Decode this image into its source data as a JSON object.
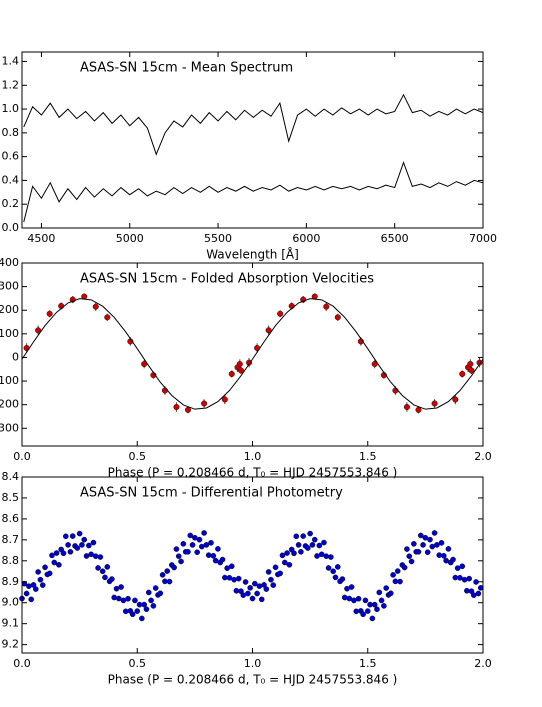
{
  "chart_data": [
    {
      "type": "line",
      "title": "ASAS-SN 15cm - Mean Spectrum",
      "x_label": "Wavelength [Å]",
      "xlim": [
        4390,
        7000
      ],
      "xticks": [
        4500,
        5000,
        5500,
        6000,
        6500,
        7000
      ],
      "ylim": [
        0,
        1.48
      ],
      "yticks": [
        {
          "value": 0,
          "label": "0.0"
        },
        0.2,
        0.4,
        0.6,
        0.8,
        {
          "value": 1,
          "label": "1.0"
        },
        1.2,
        1.4
      ],
      "series": [
        {
          "color": "#000000",
          "x": [
            4400,
            4450,
            4500,
            4550,
            4600,
            4650,
            4700,
            4750,
            4800,
            4850,
            4900,
            4950,
            5000,
            5050,
            5100,
            5150,
            5200,
            5250,
            5300,
            5350,
            5400,
            5450,
            5500,
            5550,
            5600,
            5650,
            5700,
            5750,
            5800,
            5850,
            5900,
            5950,
            6000,
            6050,
            6100,
            6150,
            6200,
            6250,
            6300,
            6350,
            6400,
            6450,
            6500,
            6550,
            6600,
            6650,
            6700,
            6750,
            6800,
            6850,
            6900,
            6950,
            7000
          ],
          "values": [
            0.85,
            1.02,
            0.95,
            1.05,
            0.93,
            1.0,
            0.92,
            0.98,
            0.9,
            0.97,
            0.88,
            0.95,
            0.86,
            0.93,
            0.84,
            0.62,
            0.8,
            0.9,
            0.85,
            0.95,
            0.88,
            0.97,
            0.9,
            0.98,
            0.91,
            0.99,
            0.93,
            0.99,
            0.94,
            1.05,
            0.73,
            0.95,
            1.0,
            0.94,
            1.0,
            0.95,
            1.01,
            0.96,
            1.0,
            0.95,
            1.0,
            0.96,
            0.98,
            1.12,
            0.97,
            0.99,
            0.94,
            0.98,
            0.95,
            1.0,
            0.96,
            1.0,
            0.97
          ]
        },
        {
          "color": "#000000",
          "x": [
            4400,
            4450,
            4500,
            4550,
            4600,
            4650,
            4700,
            4750,
            4800,
            4850,
            4900,
            4950,
            5000,
            5050,
            5100,
            5150,
            5200,
            5250,
            5300,
            5350,
            5400,
            5450,
            5500,
            5550,
            5600,
            5650,
            5700,
            5750,
            5800,
            5850,
            5900,
            5950,
            6000,
            6050,
            6100,
            6150,
            6200,
            6250,
            6300,
            6350,
            6400,
            6450,
            6500,
            6550,
            6600,
            6650,
            6700,
            6750,
            6800,
            6850,
            6900,
            6950,
            7000
          ],
          "values": [
            0.05,
            0.35,
            0.25,
            0.38,
            0.22,
            0.33,
            0.24,
            0.34,
            0.26,
            0.33,
            0.27,
            0.34,
            0.28,
            0.33,
            0.27,
            0.31,
            0.28,
            0.34,
            0.29,
            0.34,
            0.3,
            0.35,
            0.3,
            0.34,
            0.31,
            0.35,
            0.31,
            0.34,
            0.32,
            0.36,
            0.31,
            0.34,
            0.32,
            0.35,
            0.32,
            0.35,
            0.33,
            0.35,
            0.32,
            0.35,
            0.33,
            0.36,
            0.34,
            0.55,
            0.35,
            0.37,
            0.34,
            0.38,
            0.35,
            0.39,
            0.36,
            0.4,
            0.38
          ]
        }
      ]
    },
    {
      "type": "scatter",
      "title": "ASAS-SN 15cm - Folded Absorption Velocities",
      "x_label": "Phase (P =  0.208466 d,  T₀ = HJD 2457553.846 )",
      "xlim": [
        0,
        2
      ],
      "xticks": [
        {
          "value": 0,
          "label": "0.0"
        },
        0.5,
        {
          "value": 1,
          "label": "1.0"
        },
        1.5,
        {
          "value": 2,
          "label": "2.0"
        }
      ],
      "ylim": [
        -375,
        400
      ],
      "yticks": [
        -300,
        -200,
        -100,
        0,
        100,
        200,
        300,
        400
      ],
      "series": [
        {
          "type": "scatter",
          "color": "#cc0000",
          "x": [
            0.02,
            0.07,
            0.12,
            0.17,
            0.22,
            0.27,
            0.32,
            0.37,
            0.47,
            0.53,
            0.57,
            0.62,
            0.67,
            0.72,
            0.79,
            0.88,
            0.91,
            0.935,
            0.945,
            0.95,
            0.985,
            1.02,
            1.07,
            1.12,
            1.17,
            1.22,
            1.27,
            1.32,
            1.37,
            1.47,
            1.53,
            1.57,
            1.62,
            1.67,
            1.72,
            1.79,
            1.88,
            1.91,
            1.935,
            1.945,
            1.95,
            1.985
          ],
          "values": [
            40,
            115,
            185,
            218,
            245,
            258,
            215,
            170,
            68,
            -28,
            -75,
            -140,
            -210,
            -222,
            -195,
            -178,
            -70,
            -42,
            -28,
            -55,
            -22,
            40,
            115,
            185,
            218,
            245,
            258,
            215,
            170,
            68,
            -28,
            -75,
            -140,
            -210,
            -222,
            -195,
            -178,
            -70,
            -42,
            -28,
            -55,
            -22
          ],
          "errors": [
            20,
            20,
            15,
            15,
            15,
            12,
            18,
            15,
            18,
            18,
            15,
            18,
            20,
            15,
            18,
            20,
            15,
            20,
            20,
            15,
            20,
            20,
            20,
            15,
            15,
            15,
            12,
            18,
            15,
            18,
            18,
            15,
            18,
            20,
            15,
            18,
            20,
            15,
            20,
            20,
            15,
            20
          ]
        },
        {
          "type": "line",
          "color": "#000000",
          "x": [
            0,
            0.05,
            0.1,
            0.15,
            0.2,
            0.25,
            0.3,
            0.35,
            0.4,
            0.45,
            0.5,
            0.55,
            0.6,
            0.65,
            0.7,
            0.75,
            0.8,
            0.85,
            0.9,
            0.95,
            1,
            1.05,
            1.1,
            1.15,
            1.2,
            1.25,
            1.3,
            1.35,
            1.4,
            1.45,
            1.5,
            1.55,
            1.6,
            1.65,
            1.7,
            1.75,
            1.8,
            1.85,
            1.9,
            1.95,
            2
          ],
          "values": [
            -7,
            66,
            135,
            191,
            231,
            249,
            244,
            217,
            170,
            108,
            37,
            -36,
            -105,
            -161,
            -201,
            -219,
            -214,
            -187,
            -140,
            -78,
            -7,
            66,
            135,
            191,
            231,
            249,
            244,
            217,
            170,
            108,
            37,
            -36,
            -105,
            -161,
            -201,
            -219,
            -214,
            -187,
            -140,
            -78,
            -7
          ]
        }
      ]
    },
    {
      "type": "scatter",
      "title": "ASAS-SN 15cm - Differential Photometry",
      "x_label": "Phase (P =  0.208466 d,  T₀ = HJD 2457553.846 )",
      "xlim": [
        0,
        2
      ],
      "xticks": [
        {
          "value": 0,
          "label": "0.0"
        },
        0.5,
        {
          "value": 1,
          "label": "1.0"
        },
        1.5,
        {
          "value": 2,
          "label": "2.0"
        }
      ],
      "ylim": [
        9.24,
        8.4
      ],
      "yticks": [
        8.4,
        8.5,
        8.6,
        8.7,
        8.8,
        8.9,
        {
          "value": 9,
          "label": "9.0"
        },
        9.1,
        9.2
      ],
      "series": [
        {
          "type": "scatter",
          "color": "#0000cc",
          "x": [
            0,
            0.01,
            0.02,
            0.03,
            0.04,
            0.05,
            0.06,
            0.07,
            0.08,
            0.09,
            0.1,
            0.11,
            0.12,
            0.13,
            0.14,
            0.15,
            0.16,
            0.17,
            0.18,
            0.19,
            0.2,
            0.21,
            0.22,
            0.23,
            0.24,
            0.25,
            0.26,
            0.27,
            0.28,
            0.29,
            0.3,
            0.31,
            0.32,
            0.33,
            0.34,
            0.35,
            0.36,
            0.37,
            0.38,
            0.39,
            0.4,
            0.41,
            0.42,
            0.43,
            0.44,
            0.45,
            0.46,
            0.47,
            0.48,
            0.49,
            0.5,
            0.51,
            0.52,
            0.53,
            0.54,
            0.55,
            0.56,
            0.57,
            0.58,
            0.59,
            0.6,
            0.61,
            0.62,
            0.63,
            0.64,
            0.65,
            0.66,
            0.67,
            0.68,
            0.69,
            0.7,
            0.71,
            0.72,
            0.73,
            0.74,
            0.75,
            0.76,
            0.77,
            0.78,
            0.79,
            0.8,
            0.81,
            0.82,
            0.83,
            0.84,
            0.85,
            0.86,
            0.87,
            0.88,
            0.89,
            0.9,
            0.91,
            0.92,
            0.93,
            0.94,
            0.95,
            0.96,
            0.97,
            0.98,
            0.99,
            1,
            1.01,
            1.02,
            1.03,
            1.04,
            1.05,
            1.06,
            1.07,
            1.08,
            1.09,
            1.1,
            1.11,
            1.12,
            1.13,
            1.14,
            1.15,
            1.16,
            1.17,
            1.18,
            1.19,
            1.2,
            1.21,
            1.22,
            1.23,
            1.24,
            1.25,
            1.26,
            1.27,
            1.28,
            1.29,
            1.3,
            1.31,
            1.32,
            1.33,
            1.34,
            1.35,
            1.36,
            1.37,
            1.38,
            1.39,
            1.4,
            1.41,
            1.42,
            1.43,
            1.44,
            1.45,
            1.46,
            1.47,
            1.48,
            1.49,
            1.5,
            1.51,
            1.52,
            1.53,
            1.54,
            1.55,
            1.56,
            1.57,
            1.58,
            1.59,
            1.6,
            1.61,
            1.62,
            1.63,
            1.64,
            1.65,
            1.66,
            1.67,
            1.68,
            1.69,
            1.7,
            1.71,
            1.72,
            1.73,
            1.74,
            1.75,
            1.76,
            1.77,
            1.78,
            1.79,
            1.8,
            1.81,
            1.82,
            1.83,
            1.84,
            1.85,
            1.86,
            1.87,
            1.88,
            1.89,
            1.9,
            1.91,
            1.92,
            1.93,
            1.94,
            1.95,
            1.96,
            1.97,
            1.98,
            1.99
          ],
          "values": [
            8.98,
            8.909,
            8.956,
            8.921,
            8.984,
            8.915,
            8.935,
            8.853,
            8.89,
            8.916,
            8.831,
            8.865,
            8.86,
            8.774,
            8.808,
            8.763,
            8.819,
            8.746,
            8.764,
            8.683,
            8.724,
            8.757,
            8.682,
            8.729,
            8.739,
            8.67,
            8.724,
            8.699,
            8.777,
            8.727,
            8.769,
            8.713,
            8.778,
            8.834,
            8.782,
            8.85,
            8.879,
            8.829,
            8.898,
            8.887,
            8.975,
            8.933,
            8.98,
            8.925,
            8.989,
            9.041,
            8.981,
            9.039,
            9.055,
            8.989,
            9.04,
            9.009,
            9.075,
            9.009,
            9.031,
            8.951,
            8.989,
            9.015,
            8.93,
            8.963,
            8.955,
            8.867,
            8.898,
            8.849,
            8.899,
            8.82,
            8.832,
            8.744,
            8.778,
            8.803,
            8.719,
            8.757,
            8.757,
            8.679,
            8.724,
            8.69,
            8.759,
            8.699,
            8.732,
            8.667,
            8.724,
            8.773,
            8.714,
            8.776,
            8.799,
            8.743,
            8.808,
            8.794,
            8.88,
            8.835,
            8.881,
            8.826,
            8.89,
            8.943,
            8.885,
            8.945,
            8.964,
            8.901,
            8.956,
            8.929,
            8.98,
            8.909,
            8.956,
            8.921,
            8.984,
            8.915,
            8.935,
            8.853,
            8.89,
            8.916,
            8.831,
            8.865,
            8.86,
            8.774,
            8.808,
            8.763,
            8.819,
            8.746,
            8.764,
            8.683,
            8.724,
            8.757,
            8.682,
            8.729,
            8.739,
            8.67,
            8.724,
            8.699,
            8.777,
            8.727,
            8.769,
            8.713,
            8.778,
            8.834,
            8.782,
            8.85,
            8.879,
            8.829,
            8.898,
            8.887,
            8.975,
            8.933,
            8.98,
            8.925,
            8.989,
            9.041,
            8.981,
            9.039,
            9.055,
            8.989,
            9.04,
            9.009,
            9.075,
            9.009,
            9.031,
            8.951,
            8.989,
            9.015,
            8.93,
            8.963,
            8.955,
            8.867,
            8.898,
            8.849,
            8.899,
            8.82,
            8.832,
            8.744,
            8.778,
            8.803,
            8.719,
            8.757,
            8.757,
            8.679,
            8.724,
            8.69,
            8.759,
            8.699,
            8.732,
            8.667,
            8.724,
            8.773,
            8.714,
            8.776,
            8.799,
            8.743,
            8.808,
            8.794,
            8.88,
            8.835,
            8.881,
            8.826,
            8.89,
            8.943,
            8.885,
            8.945,
            8.964,
            8.901,
            8.956,
            8.929
          ]
        }
      ]
    }
  ]
}
